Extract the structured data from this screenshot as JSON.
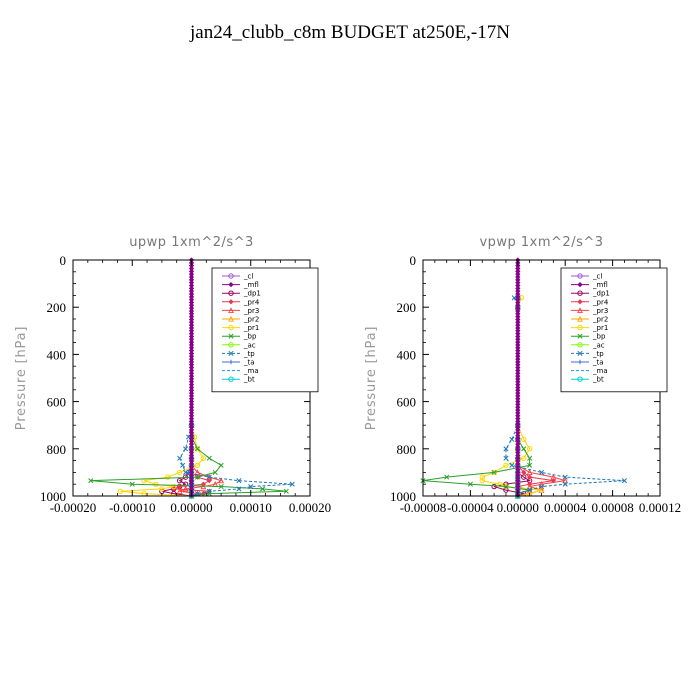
{
  "title": "jan24_clubb_c8m  BUDGET at250E,-17N",
  "chart_data": [
    {
      "type": "line",
      "title": "upwp   1xm^2/s^3",
      "ylabel": "Pressure [hPa]",
      "xlim": [
        -0.0002,
        0.0002
      ],
      "ylim": [
        1000,
        0
      ],
      "xticks": [
        "-0.00020",
        "-0.00010",
        "0.00000",
        "0.00010",
        "0.00020"
      ],
      "yticks": [
        "0",
        "200",
        "400",
        "600",
        "800",
        "1000"
      ],
      "y": [
        700,
        750,
        800,
        840,
        870,
        900,
        920,
        935,
        950,
        960,
        970,
        980,
        990,
        1000
      ],
      "series": [
        {
          "name": "_cl",
          "color": "#9b59d0",
          "values": [
            0,
            0,
            0,
            0,
            0,
            0,
            0,
            0,
            0,
            0,
            0,
            0,
            0,
            0
          ]
        },
        {
          "name": "_mfl",
          "color": "#8b008b",
          "values": [
            0,
            0,
            0,
            0,
            0,
            0,
            0,
            0,
            0,
            0,
            0,
            0,
            0,
            0
          ]
        },
        {
          "name": "_dp1",
          "color": "#a0005a",
          "values": [
            0,
            0,
            0,
            0,
            0,
            -5e-06,
            -1e-05,
            -2e-05,
            -1e-05,
            -2e-05,
            -3e-05,
            -5e-05,
            -3e-05,
            0
          ]
        },
        {
          "name": "_pr4",
          "color": "#e8384f",
          "values": [
            0,
            0,
            0,
            0,
            0,
            0,
            1e-05,
            3e-05,
            2e-05,
            -2e-05,
            -3e-05,
            3e-05,
            2e-05,
            0
          ]
        },
        {
          "name": "_pr3",
          "color": "#ff4040",
          "values": [
            0,
            0,
            0,
            0,
            0,
            1e-05,
            3e-05,
            5e-05,
            4e-05,
            2e-05,
            -1e-05,
            -2e-05,
            1e-05,
            0
          ]
        },
        {
          "name": "_pr2",
          "color": "#ffa500",
          "values": [
            0,
            0,
            0,
            0,
            0,
            0,
            0,
            0,
            0,
            0,
            0,
            0,
            0,
            0
          ]
        },
        {
          "name": "_pr1",
          "color": "#ffd700",
          "values": [
            0,
            5e-06,
            1e-05,
            2e-05,
            1e-05,
            -2e-05,
            -4e-05,
            -8e-05,
            -6e-05,
            -3e-05,
            -5e-05,
            -0.00012,
            -8e-05,
            0
          ]
        },
        {
          "name": "_bp",
          "color": "#2ca02c",
          "values": [
            0,
            0,
            1e-05,
            3e-05,
            5e-05,
            4e-05,
            1e-05,
            -0.00017,
            -0.0001,
            5e-05,
            0.00012,
            0.00016,
            3e-05,
            0
          ]
        },
        {
          "name": "_ac",
          "color": "#7fff00",
          "values": [
            0,
            0,
            0,
            0,
            0,
            0,
            0,
            0,
            0,
            0,
            0,
            0,
            0,
            0
          ]
        },
        {
          "name": "_tp",
          "color": "#1f77b4",
          "values": [
            0,
            -5e-06,
            -1e-05,
            -2e-05,
            -1.5e-05,
            -1e-05,
            3e-05,
            8e-05,
            0.00017,
            0.0001,
            8e-05,
            3e-05,
            1e-05,
            0
          ]
        },
        {
          "name": "_ta",
          "color": "#4169e1",
          "values": [
            0,
            0,
            0,
            0,
            0,
            -5e-06,
            0,
            0,
            0,
            0,
            0,
            0,
            0,
            0
          ]
        },
        {
          "name": "_ma",
          "color": "#1e90ff",
          "values": [
            0,
            0,
            0,
            0,
            0,
            0,
            0,
            0,
            0,
            0,
            0,
            0,
            0,
            0
          ]
        },
        {
          "name": "_bt",
          "color": "#00ced1",
          "values": [
            0,
            0,
            0,
            0,
            0,
            0,
            0,
            0,
            0,
            0,
            0,
            0,
            0,
            0
          ]
        }
      ]
    },
    {
      "type": "line",
      "title": "vpwp   1xm^2/s^3",
      "ylabel": "Pressure [hPa]",
      "xlim": [
        -8e-05,
        0.00012
      ],
      "ylim": [
        1000,
        0
      ],
      "xticks": [
        "-0.00008",
        "-0.00004",
        "0.00000",
        "0.00004",
        "0.00008",
        "0.00012"
      ],
      "yticks": [
        "0",
        "200",
        "400",
        "600",
        "800",
        "1000"
      ],
      "y": [
        160,
        200,
        700,
        760,
        800,
        840,
        870,
        900,
        920,
        935,
        950,
        960,
        975,
        990,
        1000
      ],
      "series": [
        {
          "name": "_cl",
          "color": "#9b59d0",
          "values": [
            0,
            0,
            0,
            0,
            0,
            0,
            0,
            0,
            0,
            0,
            0,
            0,
            0,
            0,
            0
          ]
        },
        {
          "name": "_mfl",
          "color": "#8b008b",
          "values": [
            0,
            0,
            0,
            0,
            0,
            0,
            0,
            0,
            0,
            0,
            0,
            0,
            0,
            0,
            0
          ]
        },
        {
          "name": "_dp1",
          "color": "#a0005a",
          "values": [
            0,
            0,
            0,
            0,
            0,
            0,
            0,
            0,
            5e-06,
            1e-05,
            -1e-05,
            -2e-05,
            -1e-05,
            5e-06,
            0
          ]
        },
        {
          "name": "_pr4",
          "color": "#e8384f",
          "values": [
            0,
            0,
            0,
            0,
            0,
            0,
            0,
            5e-06,
            1e-05,
            3e-05,
            1e-05,
            0,
            1e-05,
            0,
            0
          ]
        },
        {
          "name": "_pr3",
          "color": "#ff4040",
          "values": [
            0,
            0,
            0,
            0,
            0,
            0,
            0,
            1e-05,
            3e-05,
            4e-05,
            2e-05,
            1e-05,
            2e-05,
            1e-05,
            0
          ]
        },
        {
          "name": "_pr2",
          "color": "#ffa500",
          "values": [
            0,
            0,
            0,
            0,
            0,
            0,
            0,
            0,
            0,
            0,
            0,
            0,
            0,
            0,
            0
          ]
        },
        {
          "name": "_pr1",
          "color": "#ffd700",
          "values": [
            3e-06,
            0,
            0,
            5e-06,
            1e-05,
            5e-06,
            -1e-05,
            -2e-05,
            -3e-05,
            -3e-05,
            -1.5e-05,
            -1e-05,
            2e-05,
            1e-05,
            0
          ]
        },
        {
          "name": "_bp",
          "color": "#2ca02c",
          "values": [
            0,
            0,
            0,
            0,
            5e-06,
            1e-05,
            1e-05,
            -2e-05,
            -6e-05,
            -8e-05,
            -4e-05,
            -1e-05,
            1e-05,
            0,
            0
          ]
        },
        {
          "name": "_ac",
          "color": "#7fff00",
          "values": [
            0,
            0,
            0,
            0,
            0,
            0,
            0,
            0,
            0,
            0,
            0,
            0,
            0,
            0,
            0
          ]
        },
        {
          "name": "_tp",
          "color": "#1f77b4",
          "values": [
            -3e-06,
            0,
            0,
            -5e-06,
            -1e-05,
            -1e-05,
            -5e-06,
            2e-05,
            4e-05,
            9e-05,
            4e-05,
            2e-05,
            1e-05,
            0,
            0
          ]
        },
        {
          "name": "_ta",
          "color": "#4169e1",
          "values": [
            0,
            0,
            0,
            0,
            0,
            0,
            0,
            0,
            0,
            0,
            0,
            0,
            0,
            0,
            0
          ]
        },
        {
          "name": "_ma",
          "color": "#1e90ff",
          "values": [
            0,
            0,
            0,
            0,
            0,
            0,
            0,
            0,
            0,
            0,
            0,
            0,
            0,
            0,
            0
          ]
        },
        {
          "name": "_bt",
          "color": "#00ced1",
          "values": [
            0,
            0,
            0,
            0,
            0,
            0,
            0,
            0,
            0,
            0,
            0,
            0,
            0,
            0,
            0
          ]
        }
      ]
    }
  ]
}
